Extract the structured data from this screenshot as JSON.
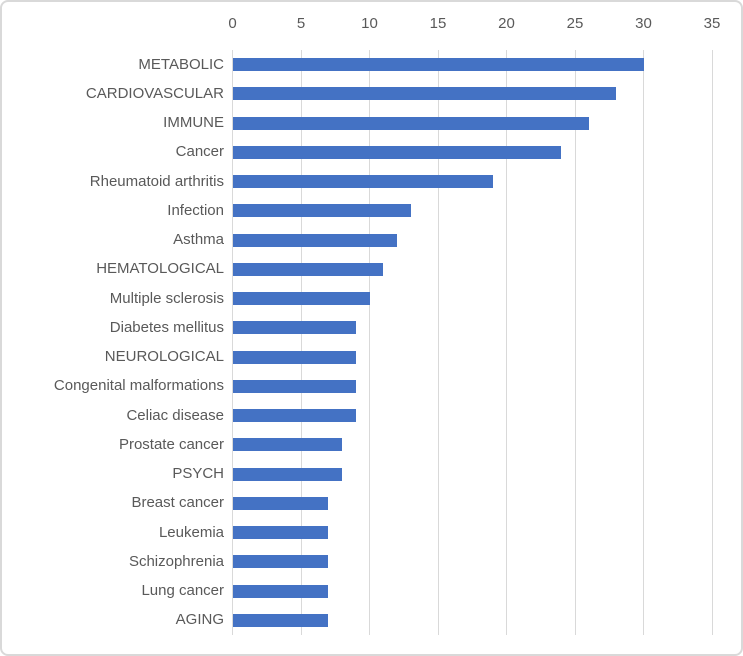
{
  "chart_data": {
    "type": "bar",
    "orientation": "horizontal",
    "title": "",
    "xlabel": "",
    "ylabel": "",
    "axis_position": "top",
    "grid": true,
    "legend": "none",
    "xlim": [
      0,
      35
    ],
    "x_ticks": [
      0,
      5,
      10,
      15,
      20,
      25,
      30,
      35
    ],
    "categories": [
      "METABOLIC",
      "CARDIOVASCULAR",
      "IMMUNE",
      "Cancer",
      "Rheumatoid arthritis",
      "Infection",
      "Asthma",
      "HEMATOLOGICAL",
      "Multiple sclerosis",
      "Diabetes mellitus",
      "NEUROLOGICAL",
      "Congenital malformations",
      "Celiac disease",
      "Prostate cancer",
      "PSYCH",
      "Breast cancer",
      "Leukemia",
      "Schizophrenia",
      "Lung cancer",
      "AGING"
    ],
    "values": [
      30,
      28,
      26,
      24,
      19,
      13,
      12,
      11,
      10,
      9,
      9,
      9,
      9,
      8,
      8,
      7,
      7,
      7,
      7,
      7
    ],
    "colors": {
      "bar": "#4472C4",
      "gridline": "#D9D9D9",
      "axis_text": "#595959",
      "frame_border": "#D9D9D9",
      "background": "#FFFFFF"
    }
  }
}
